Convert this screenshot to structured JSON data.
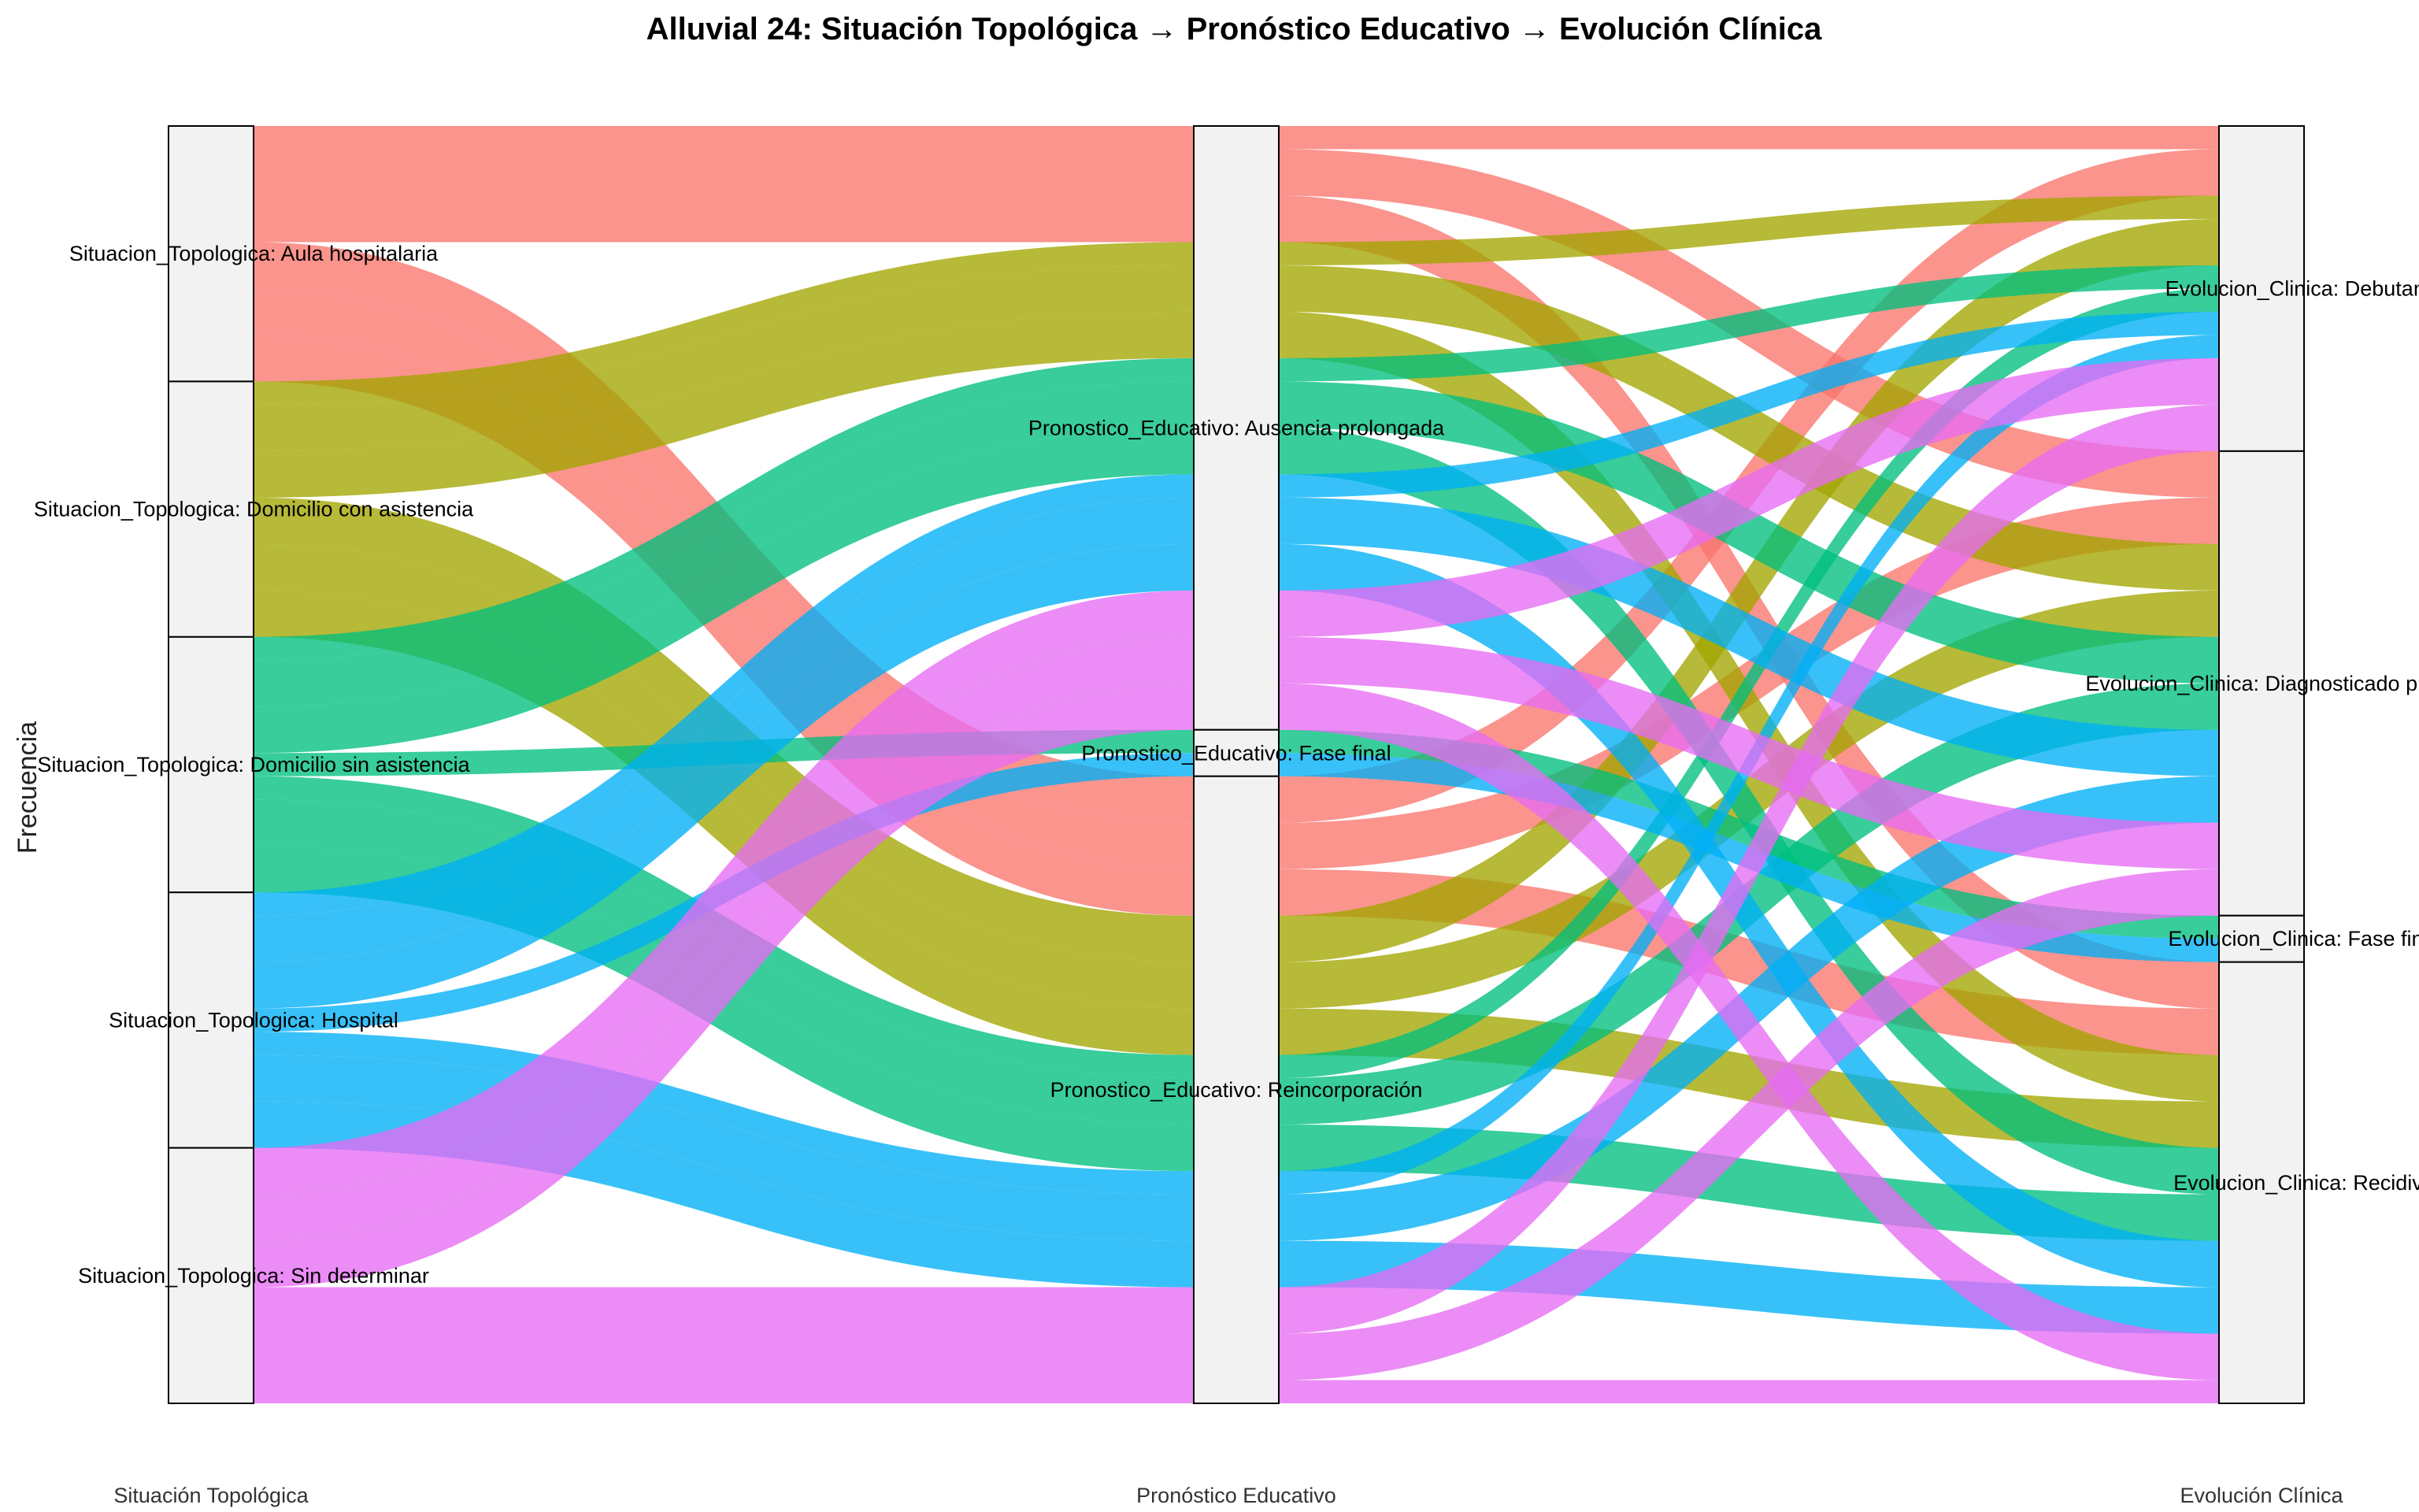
{
  "chart_data": {
    "type": "alluvial",
    "title": "Alluvial 24: Situación Topológica → Pronóstico Educativo → Evolución Clínica",
    "ylabel": "Frecuencia",
    "axes": [
      "Situación Topológica",
      "Pronóstico Educativo",
      "Evolución Clínica"
    ],
    "strata": {
      "Situación Topológica": [
        "Situacion_Topologica: Aula hospitalaria",
        "Situacion_Topologica: Domicilio con asistencia",
        "Situacion_Topologica: Domicilio sin asistencia",
        "Situacion_Topologica: Hospital",
        "Situacion_Topologica: Sin determinar"
      ],
      "Pronóstico Educativo": [
        "Pronostico_Educativo: Ausencia prolongada",
        "Pronostico_Educativo: Fase final",
        "Pronostico_Educativo: Reincorporación"
      ],
      "Evolución Clínica": [
        "Evolucion_Clinica: Debutante",
        "Evolucion_Clinica: Diagnosticado previamente",
        "Evolucion_Clinica: Fase final",
        "Evolucion_Clinica: Recidiva"
      ]
    },
    "fill_by": "Situación Topológica",
    "colors": {
      "Situacion_Topologica: Aula hospitalaria": "#F8766D",
      "Situacion_Topologica: Domicilio con asistencia": "#A3A500",
      "Situacion_Topologica: Domicilio sin asistencia": "#00BF7D",
      "Situacion_Topologica: Hospital": "#00B0F6",
      "Situacion_Topologica: Sin determinar": "#E76BF3"
    },
    "flows": [
      {
        "s": 0,
        "p": 0,
        "e": 0,
        "freq": 1
      },
      {
        "s": 0,
        "p": 0,
        "e": 1,
        "freq": 2
      },
      {
        "s": 0,
        "p": 0,
        "e": 3,
        "freq": 2
      },
      {
        "s": 0,
        "p": 2,
        "e": 0,
        "freq": 2
      },
      {
        "s": 0,
        "p": 2,
        "e": 1,
        "freq": 2
      },
      {
        "s": 0,
        "p": 2,
        "e": 3,
        "freq": 2
      },
      {
        "s": 1,
        "p": 0,
        "e": 0,
        "freq": 1
      },
      {
        "s": 1,
        "p": 0,
        "e": 1,
        "freq": 2
      },
      {
        "s": 1,
        "p": 0,
        "e": 3,
        "freq": 2
      },
      {
        "s": 1,
        "p": 2,
        "e": 0,
        "freq": 2
      },
      {
        "s": 1,
        "p": 2,
        "e": 1,
        "freq": 2
      },
      {
        "s": 1,
        "p": 2,
        "e": 3,
        "freq": 2
      },
      {
        "s": 2,
        "p": 0,
        "e": 0,
        "freq": 1
      },
      {
        "s": 2,
        "p": 0,
        "e": 1,
        "freq": 2
      },
      {
        "s": 2,
        "p": 0,
        "e": 3,
        "freq": 2
      },
      {
        "s": 2,
        "p": 1,
        "e": 2,
        "freq": 1
      },
      {
        "s": 2,
        "p": 2,
        "e": 0,
        "freq": 1
      },
      {
        "s": 2,
        "p": 2,
        "e": 1,
        "freq": 2
      },
      {
        "s": 2,
        "p": 2,
        "e": 3,
        "freq": 2
      },
      {
        "s": 3,
        "p": 0,
        "e": 0,
        "freq": 1
      },
      {
        "s": 3,
        "p": 0,
        "e": 1,
        "freq": 2
      },
      {
        "s": 3,
        "p": 0,
        "e": 3,
        "freq": 2
      },
      {
        "s": 3,
        "p": 1,
        "e": 2,
        "freq": 1
      },
      {
        "s": 3,
        "p": 2,
        "e": 0,
        "freq": 1
      },
      {
        "s": 3,
        "p": 2,
        "e": 1,
        "freq": 2
      },
      {
        "s": 3,
        "p": 2,
        "e": 3,
        "freq": 2
      },
      {
        "s": 4,
        "p": 0,
        "e": 0,
        "freq": 2
      },
      {
        "s": 4,
        "p": 0,
        "e": 1,
        "freq": 2
      },
      {
        "s": 4,
        "p": 0,
        "e": 3,
        "freq": 2
      },
      {
        "s": 4,
        "p": 2,
        "e": 0,
        "freq": 2
      },
      {
        "s": 4,
        "p": 2,
        "e": 1,
        "freq": 2
      },
      {
        "s": 4,
        "p": 2,
        "e": 3,
        "freq": 1
      }
    ]
  }
}
